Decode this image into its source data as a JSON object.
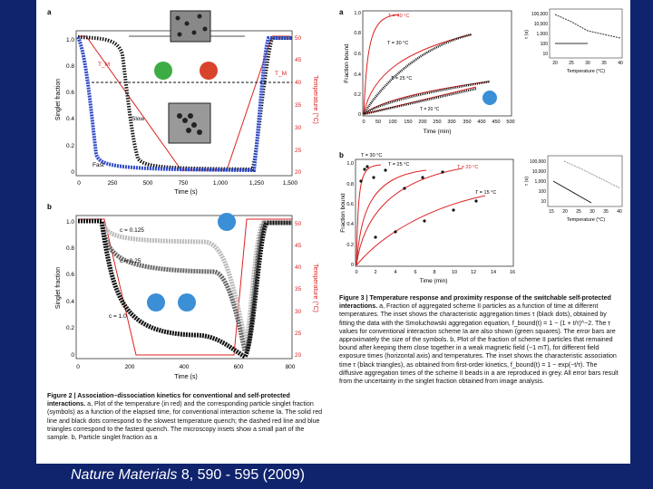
{
  "footer": {
    "journal": "Nature Materials",
    "citation": " 8, 590 - 595 (2009)"
  },
  "panels": {
    "fig2a": {
      "letter": "a",
      "ylabel": "Singlet fraction",
      "y2label": "Temperature (°C)",
      "xlabel": "Time (s)",
      "xticks": [
        "0",
        "250",
        "500",
        "750",
        "1,000",
        "1,250",
        "1,500"
      ],
      "yticks": [
        "0",
        "0.2",
        "0.4",
        "0.6",
        "0.8",
        "1.0"
      ],
      "y2ticks": [
        "20",
        "25",
        "30",
        "35",
        "40",
        "45",
        "50"
      ],
      "labels": {
        "slow": "Slow",
        "fast": "Fast",
        "tm": "T_M",
        "tm2": "T_M"
      }
    },
    "fig2b": {
      "letter": "b",
      "ylabel": "Singlet fraction",
      "y2label": "Temperature (°C)",
      "xlabel": "Time (s)",
      "xticks": [
        "0",
        "200",
        "400",
        "600",
        "800"
      ],
      "yticks": [
        "0",
        "0.2",
        "0.4",
        "0.6",
        "0.8",
        "1.0"
      ],
      "y2ticks": [
        "20",
        "25",
        "30",
        "35",
        "40",
        "45",
        "50"
      ],
      "labels": {
        "c1": "c = 0.125",
        "c2": "c = 0.25",
        "c3": "c = 1.0"
      }
    },
    "fig3a": {
      "letter": "a",
      "ylabel": "Fraction bound",
      "xlabel": "Time (min)",
      "xticks": [
        "0",
        "50",
        "100",
        "150",
        "200",
        "250",
        "300",
        "350",
        "400",
        "450",
        "500"
      ],
      "yticks": [
        "0",
        "0.2",
        "0.4",
        "0.6",
        "0.8",
        "1.0"
      ],
      "curves": [
        "T = 40 °C",
        "T = 30 °C",
        "T = 25 °C",
        "T = 20 °C"
      ],
      "inset": {
        "ylabel": "τ (s)",
        "xlabel": "Temperature (°C)",
        "yticks": [
          "100,000",
          "10,000",
          "1,000",
          "100",
          "10"
        ],
        "xticks": [
          "20",
          "25",
          "30",
          "35",
          "40"
        ]
      }
    },
    "fig3b": {
      "letter": "b",
      "ylabel": "Fraction bound",
      "xlabel": "Time (min)",
      "xticks": [
        "0",
        "2",
        "4",
        "6",
        "8",
        "10",
        "12",
        "14",
        "16"
      ],
      "yticks": [
        "0",
        "0.2",
        "0.4",
        "0.6",
        "0.8",
        "1.0"
      ],
      "curves": [
        "T = 30 °C",
        "T = 25 °C",
        "T = 20 °C",
        "T = 15 °C"
      ],
      "inset": {
        "ylabel": "τ (s)",
        "xlabel": "Temperature (°C)",
        "yticks": [
          "100,000",
          "10,000",
          "1,000",
          "100",
          "10"
        ],
        "xticks": [
          "15",
          "20",
          "25",
          "30",
          "35",
          "40"
        ]
      }
    }
  },
  "captions": {
    "fig2_title": "Figure 2 | Association–dissociation kinetics for conventional and self-protected interactions.",
    "fig2_body": " a, Plot of the temperature (in red) and the corresponding particle singlet fraction (symbols) as a function of the elapsed time, for conventional interaction scheme Ia. The solid red line and black dots correspond to the slowest temperature quench; the dashed red line and blue triangles correspond to the fastest quench. The microscopy insets show a small part of the sample. b, Particle singlet fraction as a",
    "fig3_title": "Figure 3 | Temperature response and proximity response of the switchable self-protected interactions.",
    "fig3_body": " a, Fraction of aggregated scheme II particles as a function of time at different temperatures. The inset shows the characteristic aggregation times τ (black dots), obtained by fitting the data with the Smoluchowski aggregation equation, f_bound(t) = 1 − (1 + t/τ)^−2. The τ values for conventional interaction scheme Ia are also shown (green squares). The error bars are approximately the size of the symbols. b, Plot of the fraction of scheme II particles that remained bound after keeping them close together in a weak magnetic field (~1 mT), for different field exposure times (horizontal axis) and temperatures. The inset shows the characteristic association time τ (black triangles), as obtained from first-order kinetics, f_bound(t) = 1 − exp(−t/τ). The diffusive aggregation times of the scheme II beads in a are reproduced in grey. All error bars result from the uncertainty in the singlet fraction obtained from image analysis."
  }
}
